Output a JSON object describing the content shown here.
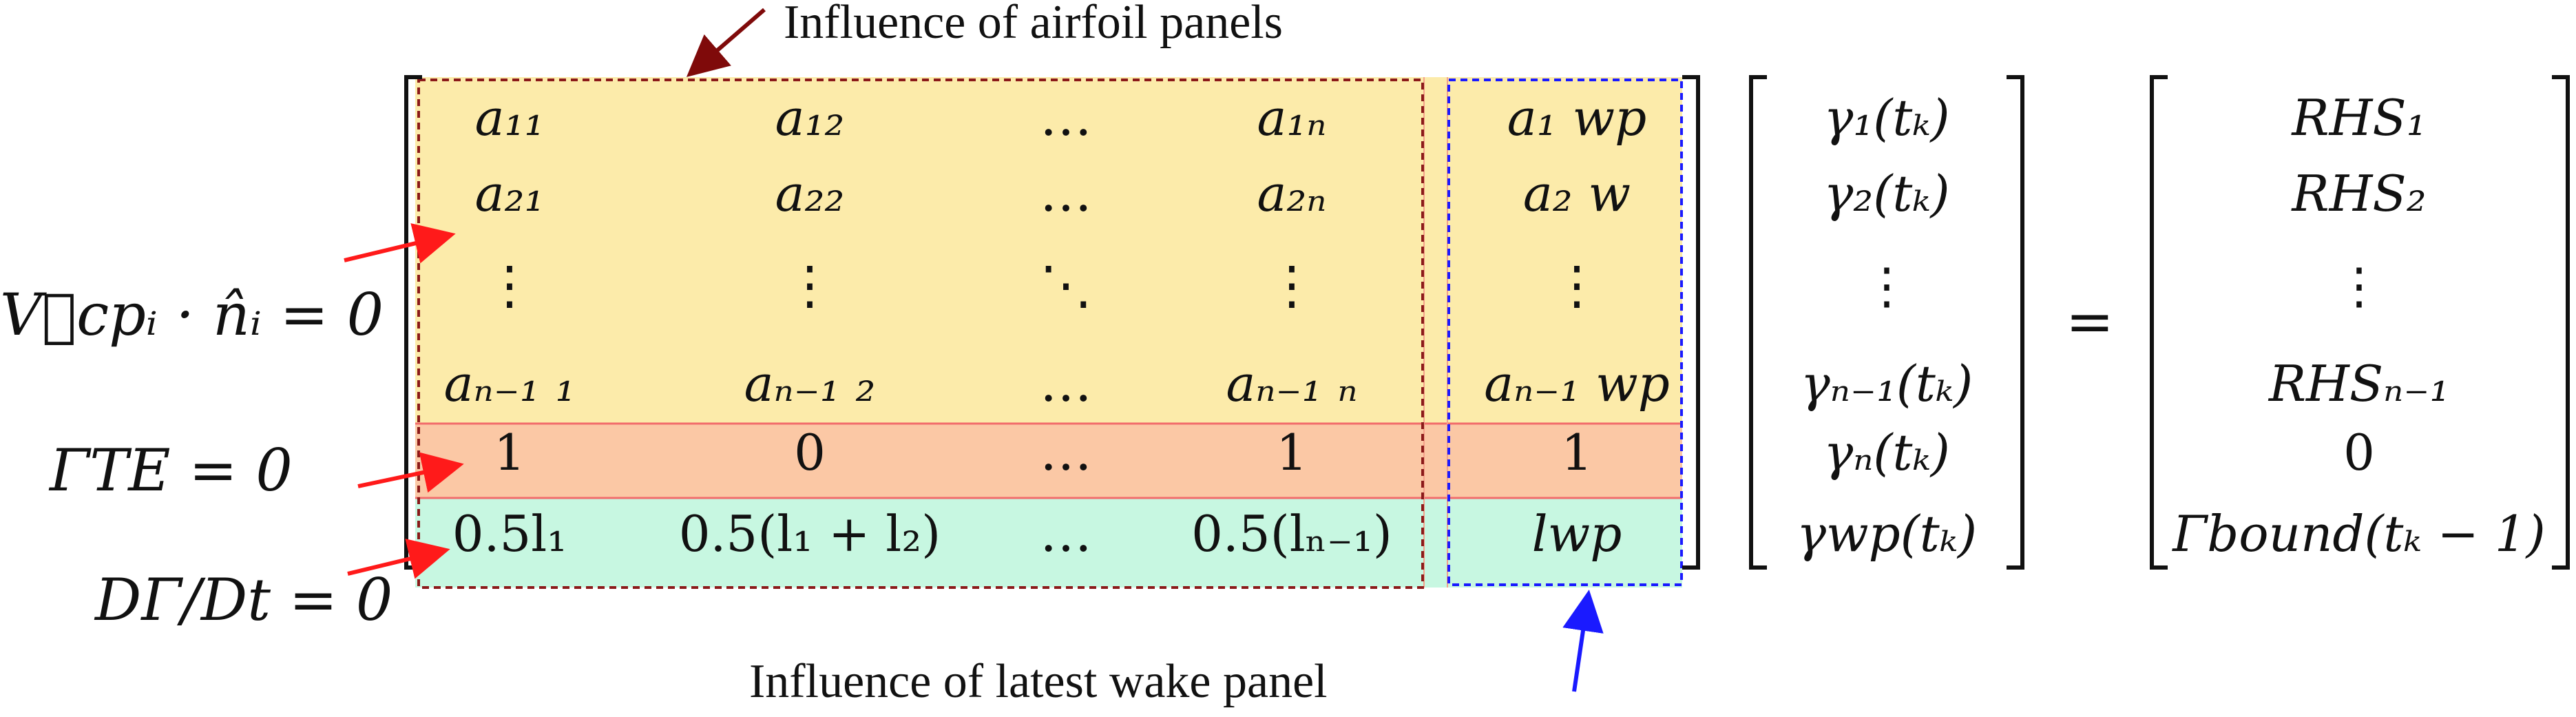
{
  "annotations": {
    "top": "Influence of airfoil panels",
    "bottom": "Influence of latest wake panel"
  },
  "row_labels": {
    "no_penetration": "V⃗cpᵢ · n̂ᵢ = 0",
    "kutta": "ΓTE = 0",
    "kelvin": "DΓ/Dt = 0"
  },
  "matrix": {
    "rows": [
      [
        "a₁₁",
        "a₁₂",
        "…",
        "a₁ₙ",
        "a₁ wp"
      ],
      [
        "a₂₁",
        "a₂₂",
        "…",
        "a₂ₙ",
        "a₂ w"
      ],
      [
        "⋮",
        "⋮",
        "⋱",
        "⋮",
        "⋮"
      ],
      [
        "aₙ₋₁ ₁",
        "aₙ₋₁ ₂",
        "…",
        "aₙ₋₁ ₙ",
        "aₙ₋₁ wp"
      ],
      [
        "1",
        "0",
        "…",
        "1",
        "1"
      ],
      [
        "0.5l₁",
        "0.5(l₁ + l₂)",
        "…",
        "0.5(lₙ₋₁)",
        "lwp"
      ]
    ]
  },
  "unknowns": [
    "γ₁(tₖ)",
    "γ₂(tₖ)",
    "⋮",
    "γₙ₋₁(tₖ)",
    "γₙ(tₖ)",
    "γwp(tₖ)"
  ],
  "equals": "=",
  "rhs": [
    "RHS₁",
    "RHS₂",
    "⋮",
    "RHSₙ₋₁",
    "0",
    "Γbound(tₖ − 1)"
  ],
  "colors": {
    "airfoil_rows_fill": "#fcebaa",
    "kutta_row_fill": "#fbc8a5",
    "kelvin_row_fill": "#c7f7e1",
    "airfoil_box": "#8b1a1a",
    "wake_box": "#1a1aff",
    "left_arrows": "#ff1a1a",
    "top_arrow": "#7f0a0a",
    "bottom_arrow": "#1a1aff",
    "row_separator": "#f26b6b"
  }
}
